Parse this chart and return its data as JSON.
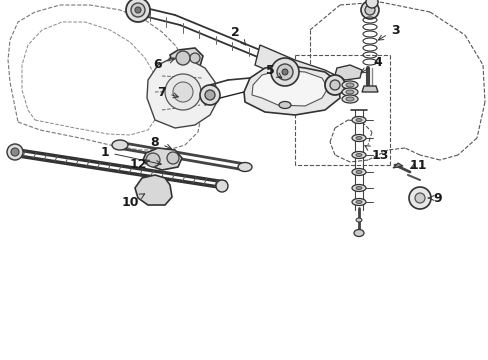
{
  "bg_color": "#ffffff",
  "line_color": "#2a2a2a",
  "label_color": "#1a1a1a",
  "figsize": [
    4.89,
    3.6
  ],
  "dpi": 100
}
